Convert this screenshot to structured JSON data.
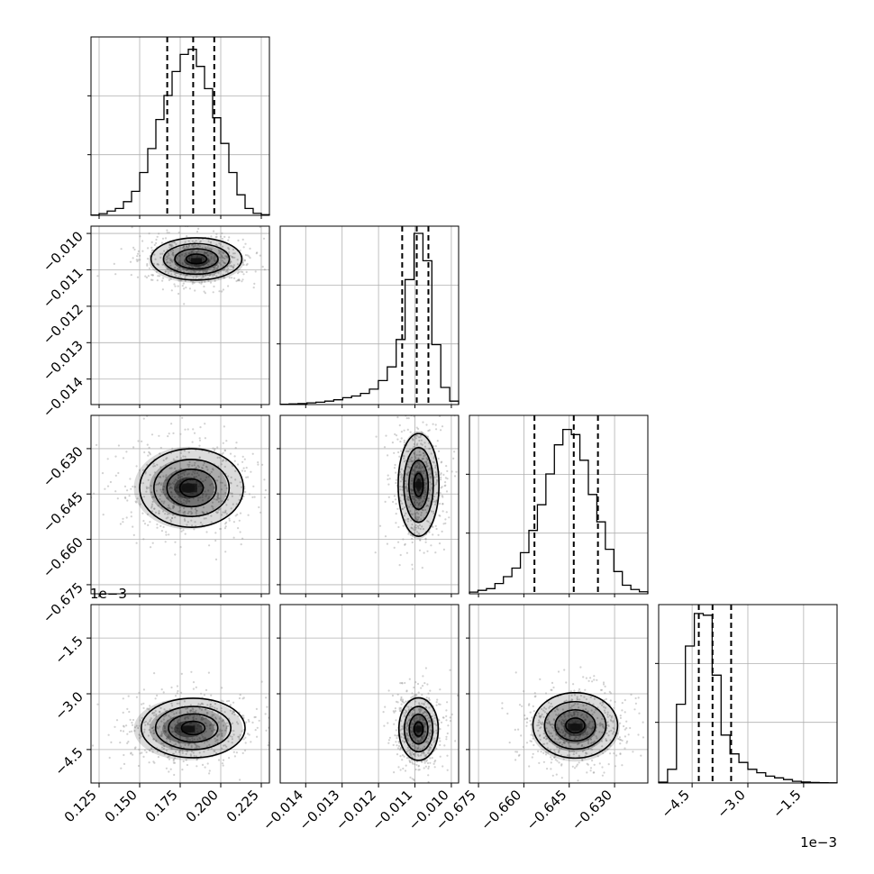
{
  "chart_data": {
    "type": "corner",
    "parameters": [
      {
        "range": [
          0.12,
          0.23
        ],
        "ticks": [
          0.125,
          0.15,
          0.175,
          0.2,
          0.225
        ],
        "tick_labels": [
          "0.125",
          "0.150",
          "0.175",
          "0.200",
          "0.225"
        ],
        "quantiles": [
          0.167,
          0.183,
          0.196
        ]
      },
      {
        "range": [
          -0.0147,
          -0.0098
        ],
        "ticks": [
          -0.014,
          -0.013,
          -0.012,
          -0.011,
          -0.01
        ],
        "tick_labels": [
          "−0.014",
          "−0.013",
          "−0.012",
          "−0.011",
          "−0.010"
        ],
        "quantiles": [
          -0.01135,
          -0.01095,
          -0.01063
        ]
      },
      {
        "range": [
          -0.678,
          -0.619
        ],
        "ticks": [
          -0.675,
          -0.66,
          -0.645,
          -0.63
        ],
        "tick_labels": [
          "−0.675",
          "−0.660",
          "−0.645",
          "−0.630"
        ],
        "quantiles": [
          -0.6565,
          -0.6435,
          -0.6355
        ]
      },
      {
        "range": [
          -5.4,
          -0.6
        ],
        "ticks": [
          -4.5,
          -3.0,
          -1.5
        ],
        "tick_labels": [
          "−4.5",
          "−3.0",
          "−1.5"
        ],
        "quantiles": [
          -4.32,
          -3.95,
          -3.45
        ],
        "scale_label": "1e−3"
      }
    ],
    "histograms": [
      [
        0.002,
        0.01,
        0.025,
        0.04,
        0.08,
        0.14,
        0.25,
        0.39,
        0.56,
        0.7,
        0.84,
        0.94,
        0.97,
        0.87,
        0.74,
        0.57,
        0.42,
        0.25,
        0.12,
        0.04,
        0.012,
        0.004
      ],
      [
        0.002,
        0.004,
        0.006,
        0.01,
        0.014,
        0.02,
        0.028,
        0.04,
        0.05,
        0.065,
        0.09,
        0.14,
        0.22,
        0.38,
        0.73,
        1.0,
        0.84,
        0.35,
        0.1,
        0.02
      ],
      [
        0.01,
        0.02,
        0.03,
        0.06,
        0.1,
        0.15,
        0.24,
        0.37,
        0.52,
        0.7,
        0.87,
        0.96,
        0.93,
        0.78,
        0.58,
        0.42,
        0.26,
        0.13,
        0.05,
        0.025,
        0.012
      ],
      [
        0.005,
        0.08,
        0.46,
        0.8,
        0.99,
        0.98,
        0.63,
        0.28,
        0.17,
        0.12,
        0.08,
        0.06,
        0.04,
        0.03,
        0.02,
        0.01,
        0.006,
        0.003,
        0.002,
        0.001
      ]
    ],
    "densities": [
      {
        "x": 0,
        "y": 1,
        "mean": [
          0.185,
          -0.01075
        ],
        "sd": [
          0.014,
          0.00029
        ],
        "contour_center": [
          0.185,
          -0.0107
        ]
      },
      {
        "x": 0,
        "y": 2,
        "mean": [
          0.18,
          -0.643
        ],
        "sd": [
          0.016,
          0.0065
        ],
        "contour_center": [
          0.182,
          -0.643
        ]
      },
      {
        "x": 1,
        "y": 2,
        "mean": [
          -0.0109,
          -0.642
        ],
        "sd": [
          0.00028,
          0.0085
        ],
        "contour_center": [
          -0.0109,
          -0.642
        ]
      },
      {
        "x": 0,
        "y": 3,
        "mean": [
          0.18,
          -3.95
        ],
        "sd": [
          0.016,
          0.4
        ],
        "contour_center": [
          0.183,
          -3.92
        ]
      },
      {
        "x": 1,
        "y": 3,
        "mean": [
          -0.0109,
          -3.95
        ],
        "sd": [
          0.00027,
          0.42
        ],
        "contour_center": [
          -0.0109,
          -3.95
        ]
      },
      {
        "x": 2,
        "y": 3,
        "mean": [
          -0.643,
          -3.9
        ],
        "sd": [
          0.007,
          0.44
        ],
        "contour_center": [
          -0.643,
          -3.85
        ]
      }
    ],
    "grid": true
  }
}
